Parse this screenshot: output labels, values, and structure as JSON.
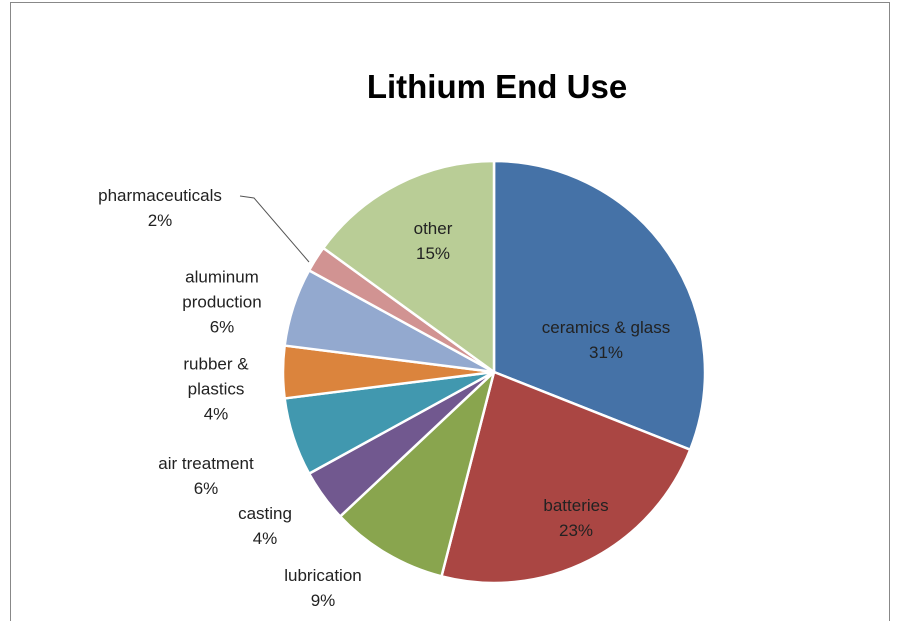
{
  "chart_data": {
    "type": "pie",
    "title": "Lithium End Use",
    "categories": [
      "ceramics & glass",
      "batteries",
      "lubrication",
      "casting",
      "air treatment",
      "rubber & plastics",
      "aluminum production",
      "pharmaceuticals",
      "other"
    ],
    "values": [
      31,
      23,
      9,
      4,
      6,
      4,
      6,
      2,
      15
    ],
    "value_labels": [
      "31%",
      "23%",
      "9%",
      "4%",
      "6%",
      "4%",
      "6%",
      "2%",
      "15%"
    ],
    "colors": [
      "#4572a7",
      "#aa4643",
      "#89a54e",
      "#71588f",
      "#4198af",
      "#db843d",
      "#93a9cf",
      "#d19392",
      "#b9cd96"
    ]
  }
}
